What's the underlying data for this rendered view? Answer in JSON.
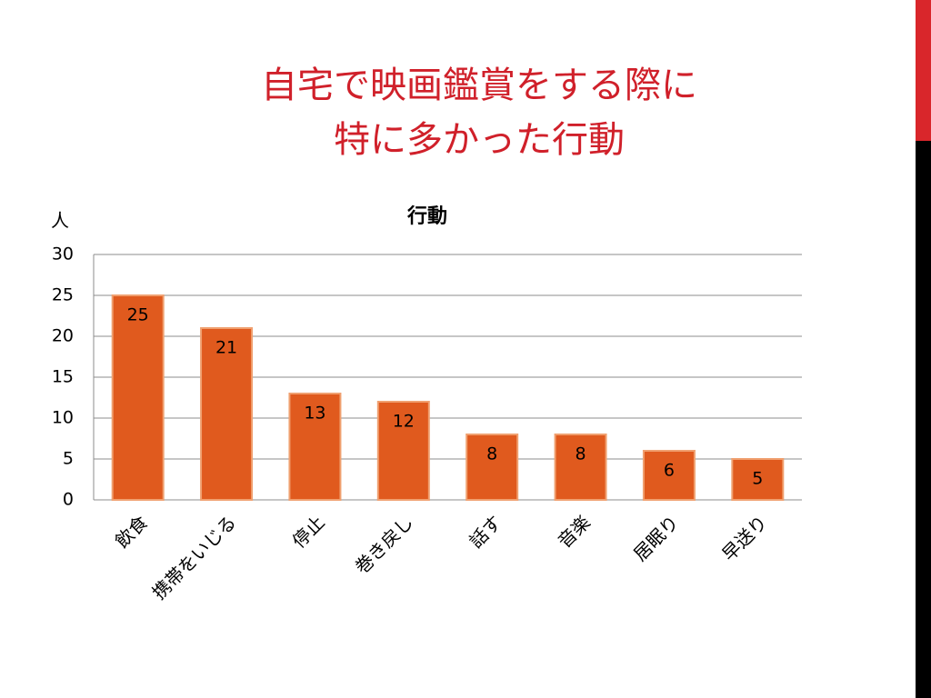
{
  "slide_title": [
    "自宅で映画鑑賞をする際に",
    "特に多かった行動"
  ],
  "chart_data": {
    "type": "bar",
    "title": "行動",
    "y_label": "人",
    "categories": [
      "飲食",
      "携帯をいじる",
      "停止",
      "巻き戻し",
      "話す",
      "音楽",
      "居眠り",
      "早送り"
    ],
    "values": [
      25,
      21,
      13,
      12,
      8,
      8,
      6,
      5
    ],
    "color": "#e05a1e",
    "ylim": [
      0,
      30
    ],
    "yticks": [
      0,
      5,
      10,
      15,
      20,
      25,
      30
    ],
    "grid": true
  }
}
